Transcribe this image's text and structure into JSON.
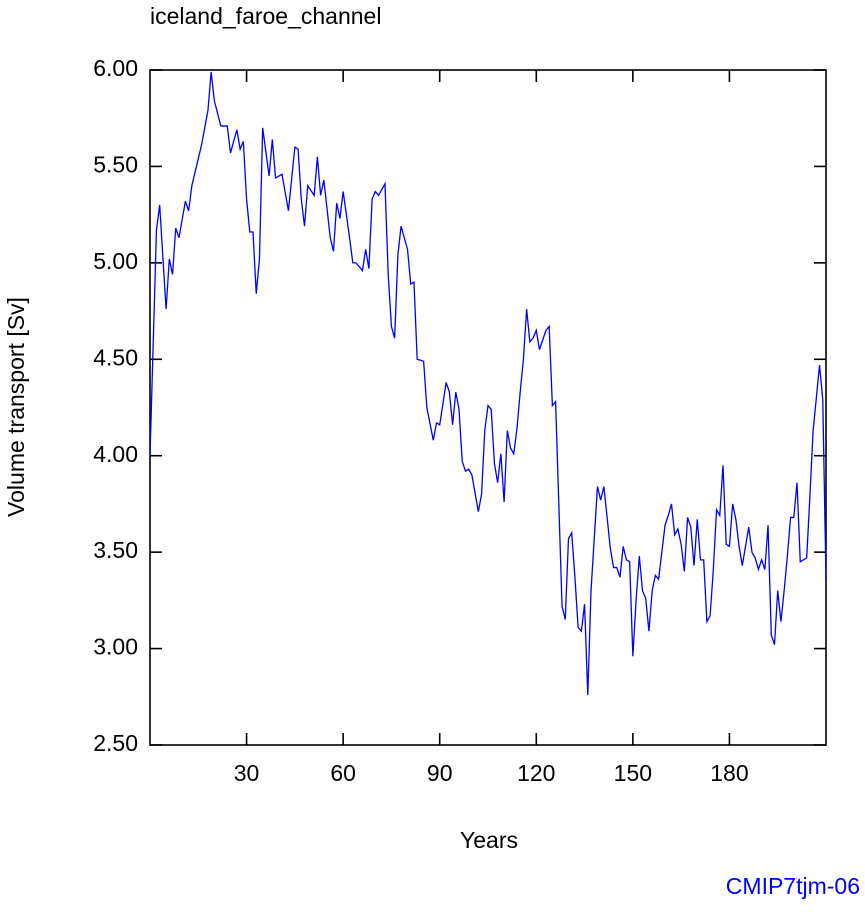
{
  "chart_data": {
    "type": "line",
    "title": "iceland_faroe_channel",
    "x_label": "Years",
    "y_label": "Volume transport [Sv]",
    "annotation": "CMIP7tjm-06",
    "annotation_color": "#0000ff",
    "xlim": [
      0,
      210
    ],
    "ylim": [
      2.5,
      6.0
    ],
    "xticks": [
      30,
      60,
      90,
      120,
      150,
      180
    ],
    "yticks": [
      {
        "value": 2.5,
        "label": "2.50"
      },
      {
        "value": 3.0,
        "label": "3.00"
      },
      {
        "value": 3.5,
        "label": "3.50"
      },
      {
        "value": 4.0,
        "label": "4.00"
      },
      {
        "value": 4.5,
        "label": "4.50"
      },
      {
        "value": 5.0,
        "label": "5.00"
      },
      {
        "value": 5.5,
        "label": "5.50"
      },
      {
        "value": 6.0,
        "label": "6.00"
      }
    ],
    "x": [
      0,
      2,
      3,
      5,
      6,
      7,
      8,
      9,
      11,
      12,
      13,
      16,
      18,
      19,
      20,
      22,
      24,
      25,
      27,
      28,
      29,
      30,
      31,
      32,
      33,
      34,
      35,
      37,
      38,
      39,
      41,
      43,
      45,
      46,
      47,
      48,
      49,
      51,
      52,
      53,
      54,
      56,
      57,
      58,
      59,
      60,
      62,
      63,
      64,
      66,
      67,
      68,
      69,
      70,
      71,
      73,
      74,
      75,
      76,
      77,
      78,
      80,
      81,
      82,
      83,
      85,
      86,
      88,
      89,
      90,
      92,
      93,
      94,
      95,
      96,
      97,
      98,
      99,
      100,
      102,
      103,
      104,
      105,
      106,
      107,
      108,
      109,
      110,
      111,
      112,
      113,
      114,
      115,
      116,
      117,
      118,
      119,
      120,
      121,
      123,
      124,
      125,
      126,
      128,
      129,
      130,
      131,
      132,
      133,
      134,
      135,
      136,
      137,
      139,
      140,
      141,
      143,
      144,
      145,
      146,
      147,
      148,
      149,
      150,
      151,
      152,
      153,
      154,
      155,
      156,
      157,
      158,
      160,
      161,
      162,
      163,
      164,
      165,
      166,
      167,
      168,
      169,
      170,
      171,
      172,
      173,
      174,
      175,
      176,
      177,
      178,
      179,
      180,
      181,
      182,
      183,
      184,
      186,
      187,
      188,
      189,
      190,
      191,
      192,
      193,
      194,
      195,
      196,
      197,
      198,
      199,
      200,
      201,
      202,
      204,
      205,
      206,
      208,
      209,
      210
    ],
    "series": [
      {
        "name": "iceland_faroe_channel",
        "color": "#0000ff",
        "values": [
          4.0,
          5.17,
          5.3,
          4.76,
          5.02,
          4.94,
          5.18,
          5.13,
          5.32,
          5.27,
          5.4,
          5.61,
          5.79,
          5.99,
          5.84,
          5.71,
          5.71,
          5.57,
          5.69,
          5.59,
          5.63,
          5.33,
          5.16,
          5.16,
          4.84,
          5.02,
          5.7,
          5.45,
          5.64,
          5.44,
          5.46,
          5.27,
          5.6,
          5.59,
          5.33,
          5.19,
          5.4,
          5.35,
          5.55,
          5.35,
          5.43,
          5.13,
          5.06,
          5.31,
          5.23,
          5.37,
          5.13,
          5.0,
          5.0,
          4.96,
          5.07,
          4.97,
          5.33,
          5.37,
          5.35,
          5.41,
          4.94,
          4.67,
          4.61,
          5.04,
          5.19,
          5.07,
          4.89,
          4.9,
          4.5,
          4.49,
          4.25,
          4.08,
          4.17,
          4.16,
          4.38,
          4.33,
          4.16,
          4.33,
          4.24,
          3.97,
          3.92,
          3.93,
          3.9,
          3.71,
          3.8,
          4.13,
          4.26,
          4.24,
          3.96,
          3.86,
          4.01,
          3.76,
          4.13,
          4.04,
          4.01,
          4.14,
          4.33,
          4.5,
          4.76,
          4.59,
          4.61,
          4.65,
          4.55,
          4.65,
          4.67,
          4.26,
          4.28,
          3.22,
          3.15,
          3.57,
          3.6,
          3.37,
          3.11,
          3.09,
          3.23,
          2.76,
          3.3,
          3.84,
          3.77,
          3.84,
          3.52,
          3.42,
          3.42,
          3.37,
          3.53,
          3.46,
          3.45,
          2.96,
          3.25,
          3.48,
          3.3,
          3.26,
          3.09,
          3.3,
          3.38,
          3.36,
          3.64,
          3.69,
          3.75,
          3.59,
          3.62,
          3.54,
          3.4,
          3.68,
          3.63,
          3.43,
          3.67,
          3.46,
          3.46,
          3.14,
          3.17,
          3.41,
          3.72,
          3.69,
          3.95,
          3.54,
          3.53,
          3.75,
          3.67,
          3.53,
          3.43,
          3.63,
          3.5,
          3.47,
          3.41,
          3.46,
          3.41,
          3.64,
          3.07,
          3.02,
          3.3,
          3.14,
          3.3,
          3.48,
          3.68,
          3.68,
          3.86,
          3.45,
          3.47,
          3.79,
          4.13,
          4.47,
          4.29,
          3.36
        ]
      }
    ]
  }
}
